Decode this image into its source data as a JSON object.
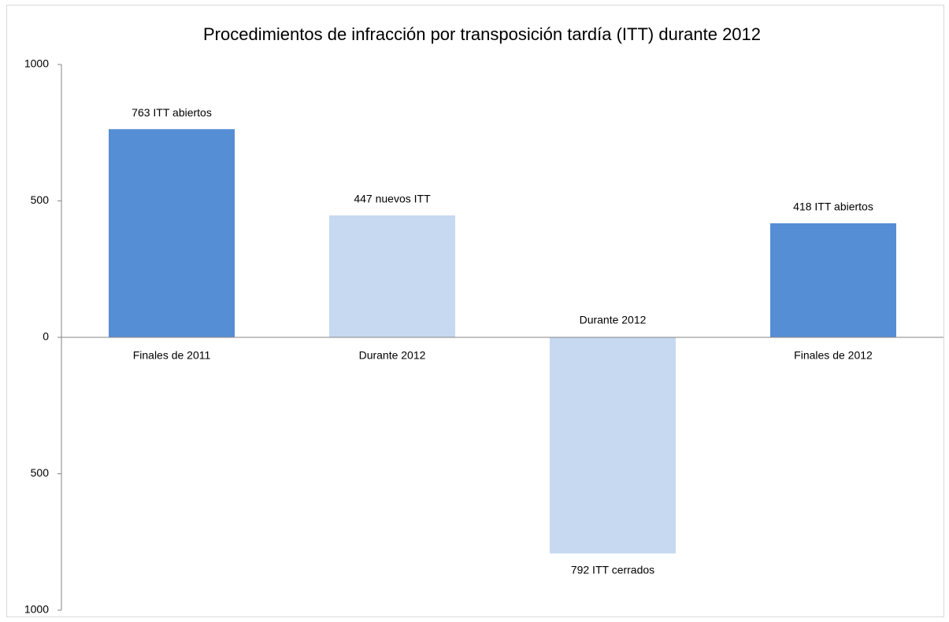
{
  "chart_data": {
    "type": "bar",
    "title": "Procedimientos de infracción por transposición tardía (ITT) durante 2012",
    "categories": [
      "Finales de 2011",
      "Durante 2012",
      "Durante 2012",
      "Finales de 2012"
    ],
    "values": [
      763,
      447,
      -792,
      418
    ],
    "value_labels": [
      "763 ITT abiertos",
      "447 nuevos ITT",
      "792 ITT cerrados",
      "418 ITT abiertos"
    ],
    "colors": [
      "#558ed5",
      "#c6d9f1",
      "#c6d9f1",
      "#558ed5"
    ],
    "ylim": [
      -1000,
      1000
    ],
    "yticks": [
      {
        "value": -1000,
        "label": "1000"
      },
      {
        "value": -500,
        "label": "500"
      },
      0,
      500,
      1000
    ],
    "grid": false
  }
}
